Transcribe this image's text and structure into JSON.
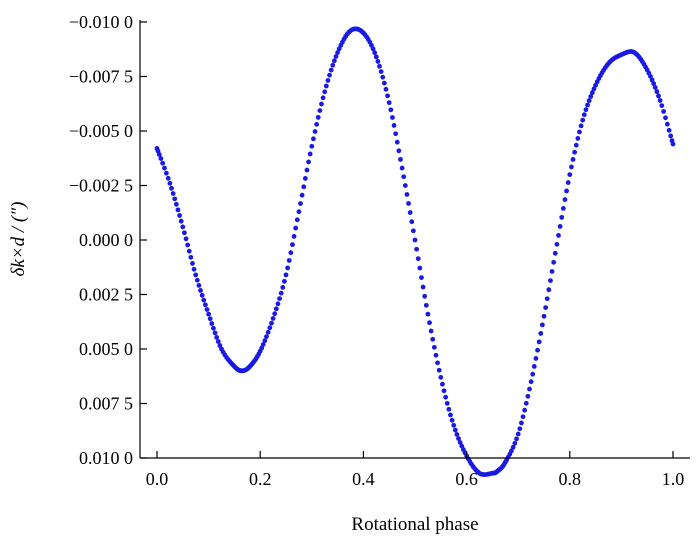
{
  "chart_data": {
    "type": "scatter",
    "title": "",
    "xlabel": "Rotational phase",
    "ylabel": "δk×d / (″)",
    "xlim": [
      0.0,
      1.0
    ],
    "ylim": [
      -0.01,
      0.01
    ],
    "y_inverted": true,
    "grid": false,
    "legend": "none",
    "x_ticks": [
      {
        "value": 0.0,
        "label": "0.0"
      },
      {
        "value": 0.2,
        "label": "0.2"
      },
      {
        "value": 0.4,
        "label": "0.4"
      },
      {
        "value": 0.6,
        "label": "0.6"
      },
      {
        "value": 0.8,
        "label": "0.8"
      },
      {
        "value": 1.0,
        "label": "1.0"
      }
    ],
    "y_ticks": [
      {
        "value": -0.01,
        "label": "−0.010 0"
      },
      {
        "value": -0.0075,
        "label": "−0.007 5"
      },
      {
        "value": -0.005,
        "label": "−0.005 0"
      },
      {
        "value": -0.0025,
        "label": "−0.002 5"
      },
      {
        "value": 0.0,
        "label": "0.000 0"
      },
      {
        "value": 0.0025,
        "label": "0.002 5"
      },
      {
        "value": 0.005,
        "label": "0.005 0"
      },
      {
        "value": 0.0075,
        "label": "0.007 5"
      },
      {
        "value": 0.01,
        "label": "0.010 0"
      }
    ],
    "series": [
      {
        "color": "#1a1ae6",
        "marker": "dot",
        "points": [
          [
            0.0,
            -0.0042
          ],
          [
            0.025,
            -0.0026
          ],
          [
            0.05,
            -0.0006
          ],
          [
            0.075,
            0.0016
          ],
          [
            0.1,
            0.0034
          ],
          [
            0.125,
            0.005
          ],
          [
            0.15,
            0.0058
          ],
          [
            0.165,
            0.006
          ],
          [
            0.18,
            0.0058
          ],
          [
            0.2,
            0.0051
          ],
          [
            0.225,
            0.0036
          ],
          [
            0.25,
            0.0016
          ],
          [
            0.275,
            -0.0013
          ],
          [
            0.3,
            -0.0043
          ],
          [
            0.325,
            -0.0068
          ],
          [
            0.35,
            -0.0086
          ],
          [
            0.375,
            -0.0096
          ],
          [
            0.4,
            -0.0095
          ],
          [
            0.425,
            -0.0084
          ],
          [
            0.45,
            -0.0063
          ],
          [
            0.475,
            -0.0033
          ],
          [
            0.5,
            -0.0
          ],
          [
            0.525,
            0.0034
          ],
          [
            0.55,
            0.0063
          ],
          [
            0.575,
            0.0085
          ],
          [
            0.6,
            0.0099
          ],
          [
            0.625,
            0.0107
          ],
          [
            0.65,
            0.0107
          ],
          [
            0.66,
            0.0106
          ],
          [
            0.675,
            0.0102
          ],
          [
            0.7,
            0.0089
          ],
          [
            0.725,
            0.0065
          ],
          [
            0.75,
            0.0035
          ],
          [
            0.775,
            0.0002
          ],
          [
            0.8,
            -0.003
          ],
          [
            0.825,
            -0.0055
          ],
          [
            0.85,
            -0.0071
          ],
          [
            0.875,
            -0.0081
          ],
          [
            0.9,
            -0.0085
          ],
          [
            0.925,
            -0.0086
          ],
          [
            0.95,
            -0.0078
          ],
          [
            0.975,
            -0.0064
          ],
          [
            1.0,
            -0.0044
          ]
        ]
      }
    ]
  }
}
